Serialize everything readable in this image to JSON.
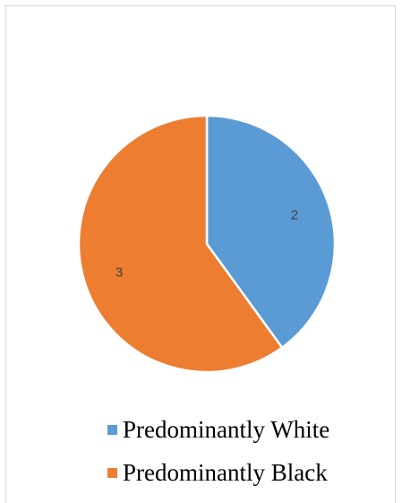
{
  "chart_data": {
    "type": "pie",
    "categories": [
      "Predominantly White",
      "Predominantly Black"
    ],
    "values": [
      2,
      3
    ],
    "data_labels": [
      "2",
      "3"
    ],
    "colors": [
      "#5B9BD5",
      "#ED7D31"
    ],
    "title": "",
    "legend": "bottom"
  }
}
